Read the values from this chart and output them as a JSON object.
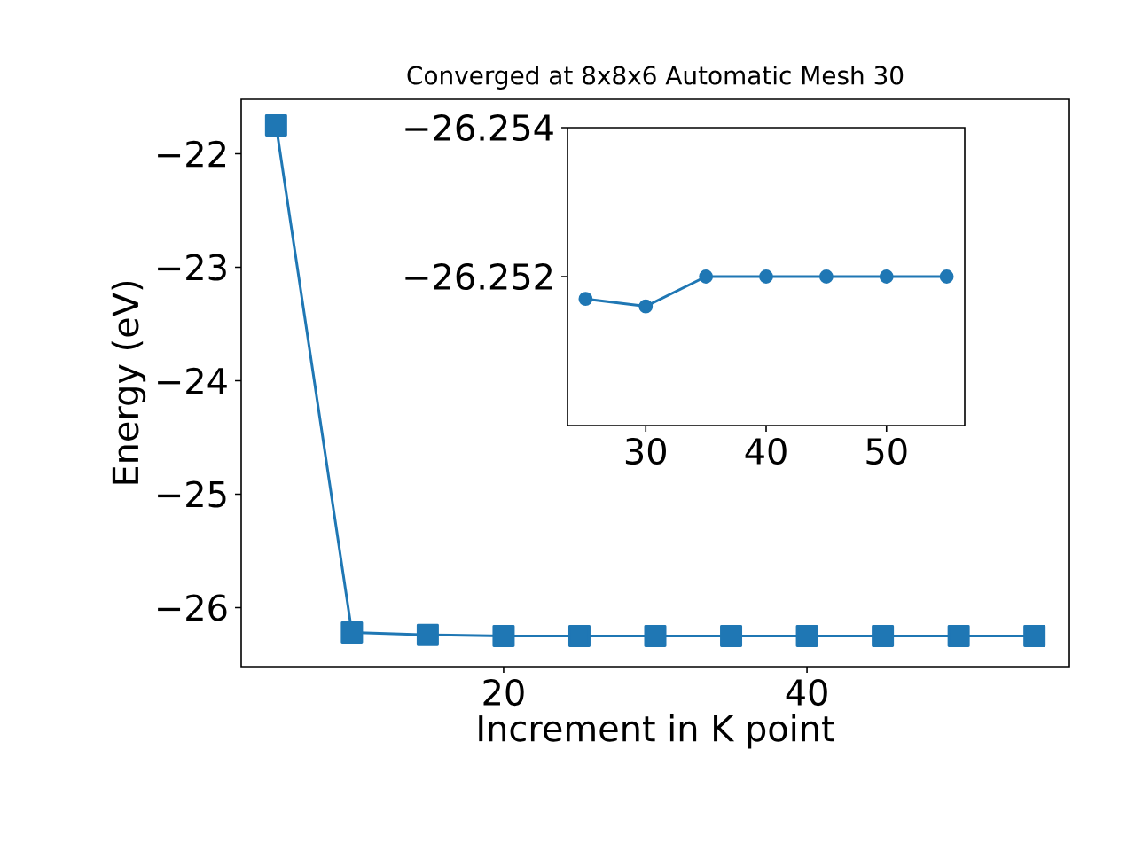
{
  "chart_data": [
    {
      "type": "line",
      "title": "Converged at 8x8x6 Automatic Mesh 30",
      "xlabel": "Increment in K point",
      "ylabel": "Energy (eV)",
      "x": [
        5,
        10,
        15,
        20,
        25,
        30,
        35,
        40,
        45,
        50,
        55
      ],
      "series": [
        {
          "color": "#1f77b4",
          "values": [
            -21.75,
            -26.22,
            -26.24,
            -26.25,
            -26.25,
            -26.25,
            -26.25,
            -26.25,
            -26.25,
            -26.25,
            -26.25
          ]
        }
      ],
      "xlim": [
        2.7,
        57.3
      ],
      "ylim": [
        -26.52,
        -21.52
      ],
      "xticks": [
        20,
        40
      ],
      "yticks": [
        {
          "value": -26,
          "label": "−26"
        },
        {
          "value": -25,
          "label": "−25"
        },
        {
          "value": -24,
          "label": "−24"
        },
        {
          "value": -23,
          "label": "−23"
        },
        {
          "value": -22,
          "label": "−22"
        }
      ],
      "marker": "square",
      "grid": false
    },
    {
      "type": "line",
      "x": [
        25,
        30,
        35,
        40,
        45,
        50,
        55
      ],
      "series": [
        {
          "color": "#1f77b4",
          "values": [
            -26.2517,
            -26.2516,
            -26.252,
            -26.252,
            -26.252,
            -26.252,
            -26.252
          ]
        }
      ],
      "xlim": [
        23.5,
        56.5
      ],
      "ylim": [
        -26.25,
        -26.254
      ],
      "xticks": [
        30,
        40,
        50
      ],
      "yticks": [
        {
          "value": -26.254,
          "label": "−26.254"
        },
        {
          "value": -26.252,
          "label": "−26.252"
        }
      ],
      "marker": "circle",
      "grid": false
    }
  ]
}
